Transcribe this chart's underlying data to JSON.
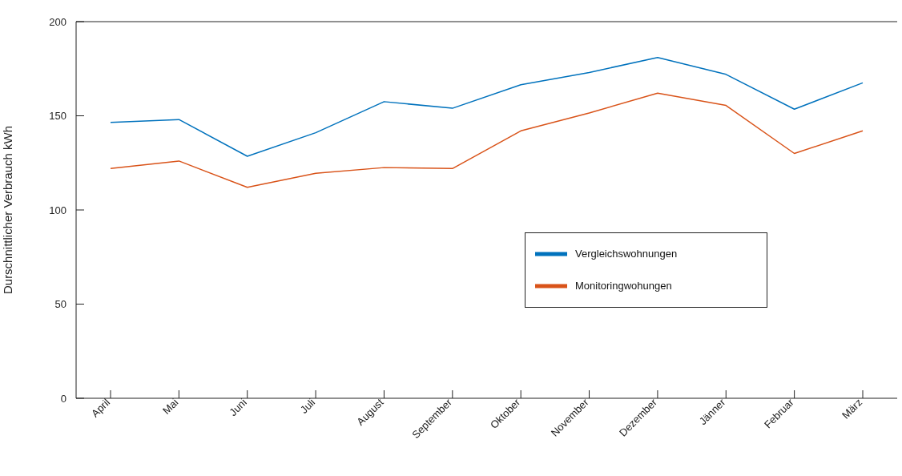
{
  "chart_data": {
    "type": "line",
    "ylabel": "Durschnittlicher Verbrauch kWh",
    "categories": [
      "April",
      "Mai",
      "Juni",
      "Juli",
      "August",
      "September",
      "Oktober",
      "November",
      "Dezember",
      "Jänner",
      "Februar",
      "März"
    ],
    "series": [
      {
        "name": "Vergleichswohnungen",
        "color": "#0072bd",
        "values": [
          146.5,
          148,
          128.5,
          141,
          157.5,
          154,
          166.5,
          173,
          181,
          172,
          153.5,
          167.5
        ]
      },
      {
        "name": "Monitoringwohungen",
        "color": "#d95319",
        "values": [
          122,
          126,
          112,
          119.5,
          122.5,
          122,
          142,
          151.5,
          162,
          155.5,
          130,
          142
        ]
      }
    ],
    "ylim": [
      0,
      200
    ],
    "yticks": [
      0,
      50,
      100,
      150,
      200
    ],
    "legend": "right",
    "marker": "none",
    "line_style": "solid"
  }
}
